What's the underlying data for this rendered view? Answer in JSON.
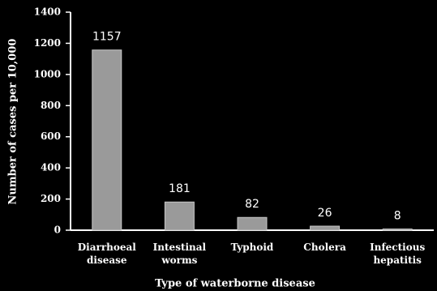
{
  "chart_data": {
    "type": "bar",
    "x_label": "Type of waterborne disease",
    "y_label": "Number of cases per 10,000",
    "categories": [
      "Diarrhoeal disease",
      "Intestinal worms",
      "Typhoid",
      "Cholera",
      "Infectious hepatitis"
    ],
    "values": [
      1157,
      181,
      82,
      26,
      8
    ],
    "color": "#9a9a9a",
    "ylim": [
      0,
      1400
    ],
    "yticks": [
      0,
      200,
      400,
      600,
      800,
      1000,
      1200,
      1400
    ],
    "grid": false
  }
}
